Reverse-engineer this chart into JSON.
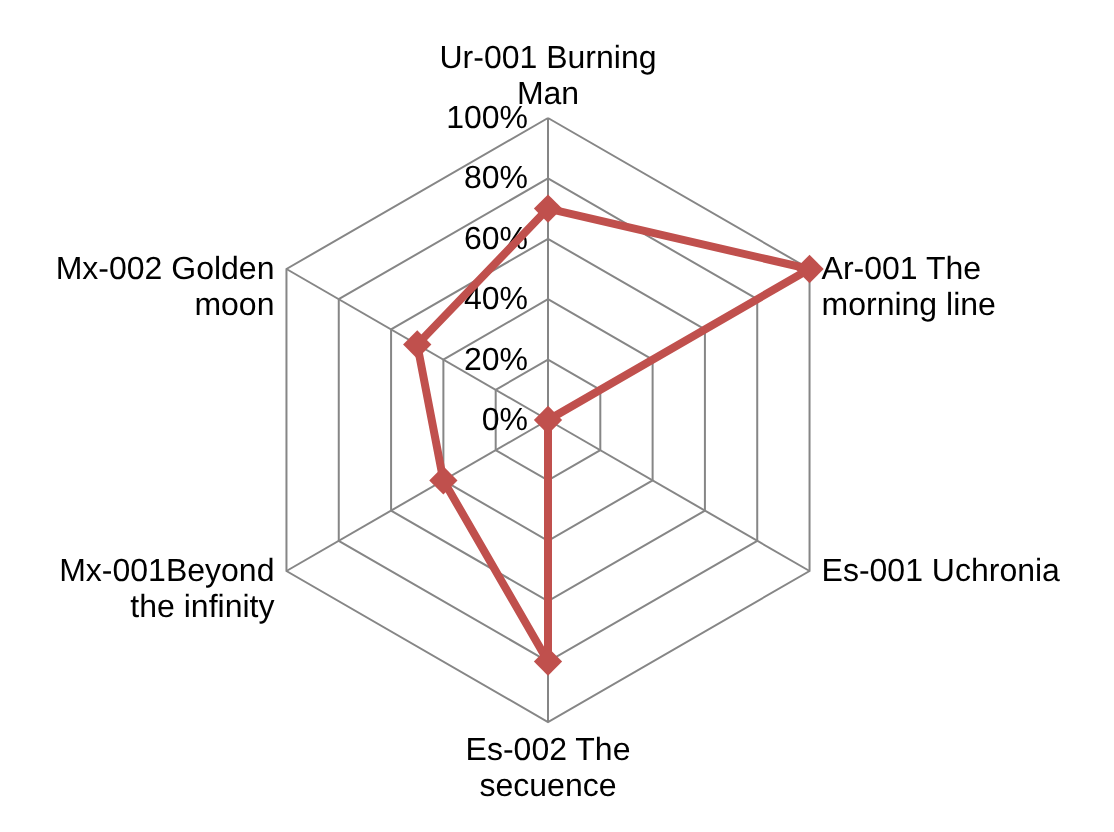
{
  "chart_data": {
    "type": "radar",
    "categories": [
      "Ur-001 Burning Man",
      "Ar-001 The morning line",
      "Es-001 Uchronia",
      "Es-002 The secuence",
      "Mx-001Beyond the infinity",
      "Mx-002 Golden moon"
    ],
    "series": [
      {
        "color": "#c0504d",
        "values": [
          70,
          100,
          0,
          80,
          40,
          50
        ]
      }
    ],
    "ylim": [
      0,
      100
    ],
    "yticks": [
      {
        "value": 0,
        "label": "0%"
      },
      {
        "value": 20,
        "label": "20%"
      },
      {
        "value": 40,
        "label": "40%"
      },
      {
        "value": 60,
        "label": "60%"
      },
      {
        "value": 80,
        "label": "80%"
      },
      {
        "value": 100,
        "label": "100%"
      }
    ],
    "grid": true,
    "marker": "diamond"
  }
}
